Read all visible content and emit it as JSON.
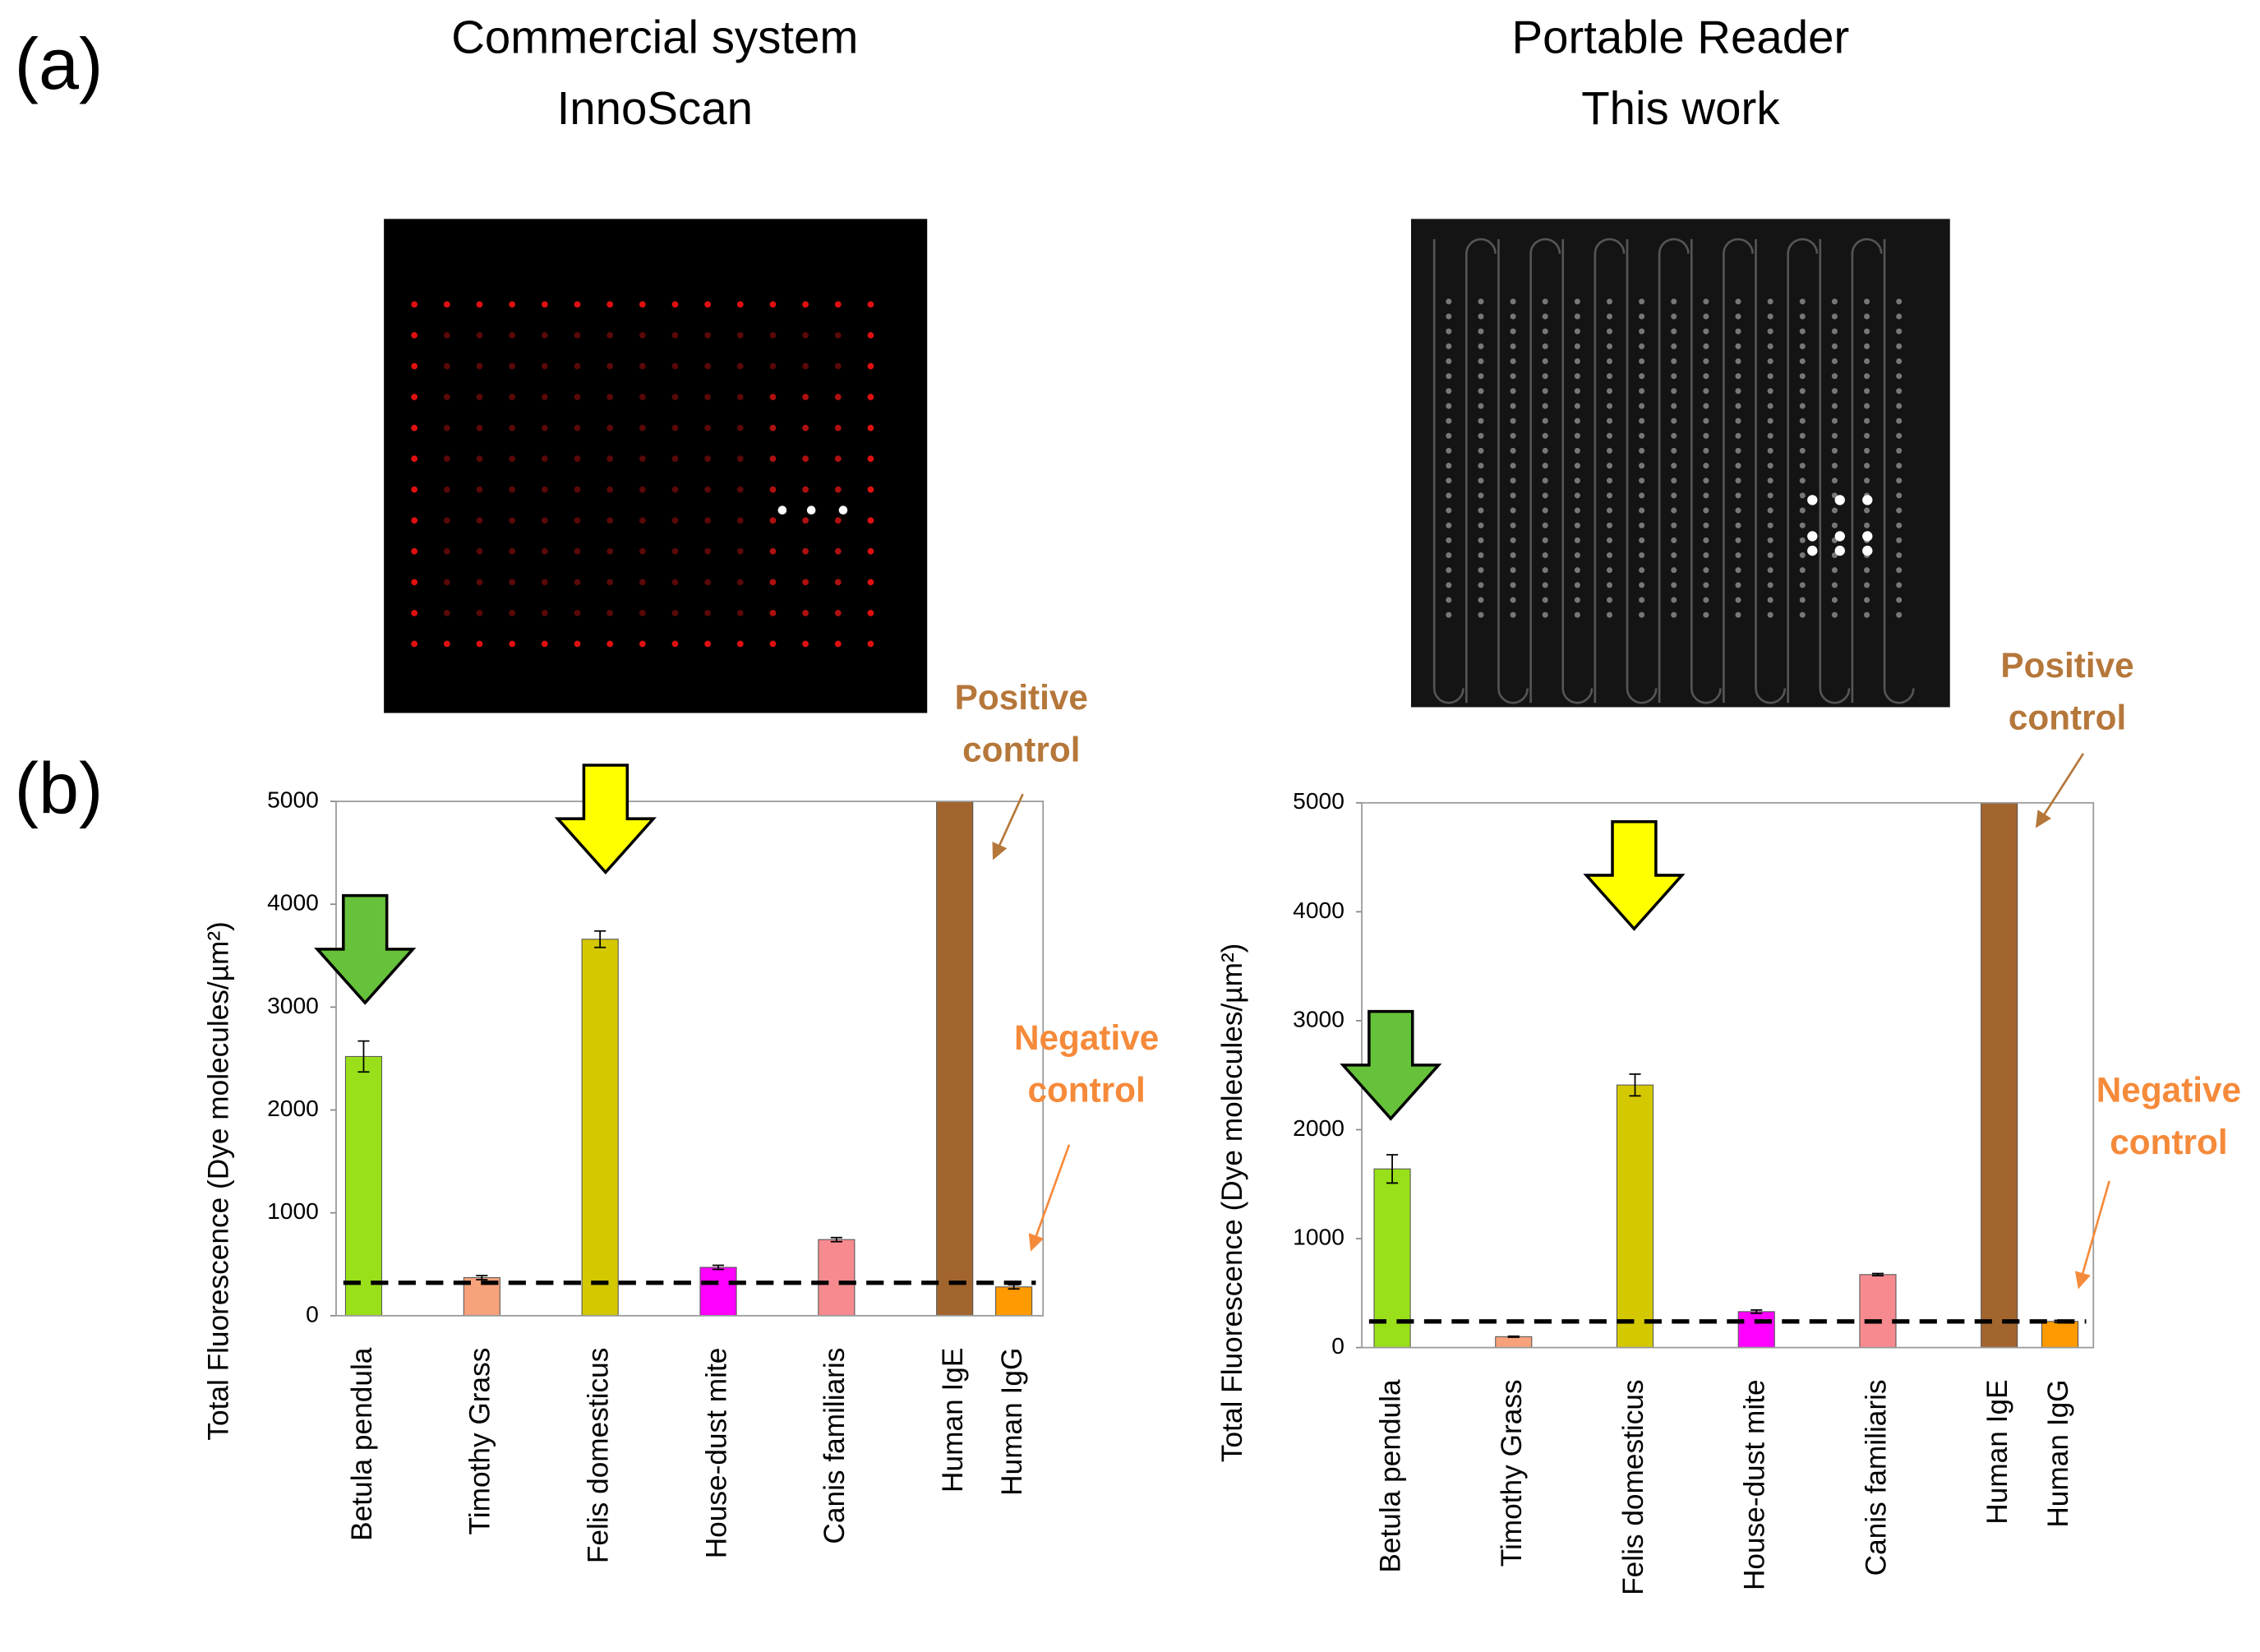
{
  "panel_labels": [
    "(a)",
    "(b)"
  ],
  "chart_data": [
    {
      "type": "bar",
      "header": [
        "Commercial system",
        "InnoScan"
      ],
      "ylabel": "Total Fluorescence (Dye molecules/µm²)",
      "categories": [
        "Betula pendula",
        "Timothy Grass",
        "Felis domesticus",
        "House-dust mite",
        "Canis familiaris",
        "Human IgE",
        "Human IgG"
      ],
      "values": [
        2520,
        370,
        3660,
        470,
        740,
        5000,
        280
      ],
      "errors": [
        150,
        20,
        80,
        20,
        20,
        null,
        20
      ],
      "colors": [
        "#99e01a",
        "#f7a27a",
        "#d4c800",
        "#ff00ff",
        "#f78a8f",
        "#a3652e",
        "#ff9a00"
      ],
      "ylim": [
        0,
        5000
      ],
      "yticks": [
        0,
        1000,
        2000,
        3000,
        4000,
        5000
      ],
      "threshold": 320,
      "annotations": [
        [
          "Positive",
          "control"
        ],
        [
          "Negative",
          "control"
        ]
      ]
    },
    {
      "type": "bar",
      "header": [
        "Portable Reader",
        "This work"
      ],
      "ylabel": "Total Fluorescence (Dye molecules/µm²)",
      "categories": [
        "Betula pendula",
        "Timothy Grass",
        "Felis domesticus",
        "House-dust mite",
        "Canis familiaris",
        "Human IgE",
        "Human IgG"
      ],
      "values": [
        1640,
        100,
        2410,
        330,
        670,
        5000,
        240
      ],
      "errors": [
        130,
        5,
        100,
        15,
        10,
        null,
        10
      ],
      "colors": [
        "#99e01a",
        "#f7a27a",
        "#d4c800",
        "#ff00ff",
        "#f78a8f",
        "#a3652e",
        "#ff9a00"
      ],
      "ylim": [
        0,
        5000
      ],
      "yticks": [
        0,
        1000,
        2000,
        3000,
        4000,
        5000
      ],
      "threshold": 240,
      "annotations": [
        [
          "Positive",
          "control"
        ],
        [
          "Negative",
          "control"
        ]
      ]
    }
  ]
}
